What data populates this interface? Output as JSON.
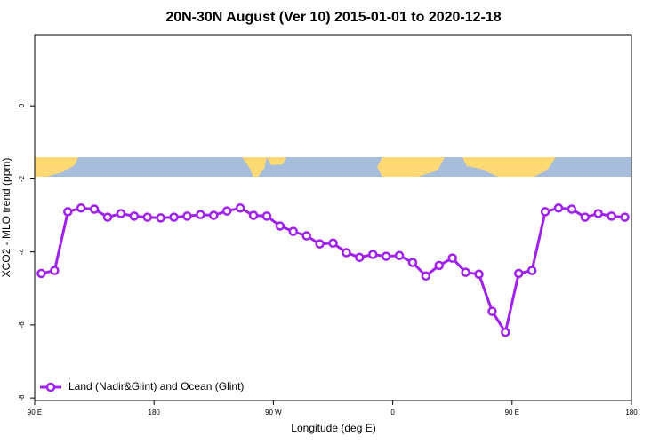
{
  "chart_data": {
    "type": "line",
    "title": "20N-30N August (Ver 10)   2015-01-01 to 2020-12-18",
    "x_label": "Longitude (deg E)",
    "y_label": "XCO2 - MLO trend (ppm)",
    "x": [
      95,
      105,
      115,
      125,
      135,
      145,
      155,
      165,
      175,
      185,
      195,
      205,
      215,
      225,
      235,
      245,
      255,
      265,
      275,
      285,
      295,
      305,
      315,
      325,
      335,
      345,
      355,
      365,
      375,
      385,
      395,
      405,
      415,
      425,
      435,
      445,
      455,
      465,
      475,
      485,
      495,
      505,
      515,
      525,
      535
    ],
    "series": [
      {
        "name": "Land (Nadir&Glint) and Ocean (Glint)",
        "color": "#a020f0",
        "values": [
          -4.59,
          -4.51,
          -2.9,
          -2.8,
          -2.83,
          -3.05,
          -2.95,
          -3.02,
          -3.05,
          -3.07,
          -3.05,
          -3.02,
          -2.98,
          -3.0,
          -2.88,
          -2.8,
          -3.0,
          -3.02,
          -3.29,
          -3.44,
          -3.56,
          -3.78,
          -3.76,
          -4.02,
          -4.15,
          -4.07,
          -4.12,
          -4.1,
          -4.29,
          -4.66,
          -4.37,
          -4.17,
          -4.56,
          -4.61,
          -5.63,
          -6.2,
          -4.59,
          -4.51,
          -2.9,
          -2.8,
          -2.83,
          -3.05,
          -2.95,
          -3.02,
          -3.05
        ]
      }
    ],
    "xlim": [
      90,
      540
    ],
    "ylim": [
      -8.07,
      1.95
    ],
    "xticks": [
      {
        "value": 90,
        "label": "90 E"
      },
      180,
      {
        "value": 270,
        "label": "90 W"
      },
      {
        "value": 360,
        "label": "0"
      },
      {
        "value": 450,
        "label": "90 E"
      },
      {
        "value": 540,
        "label": "180"
      }
    ],
    "yticks": [
      0,
      -2,
      -4,
      -6,
      -8
    ],
    "legend": "bottomleft"
  }
}
